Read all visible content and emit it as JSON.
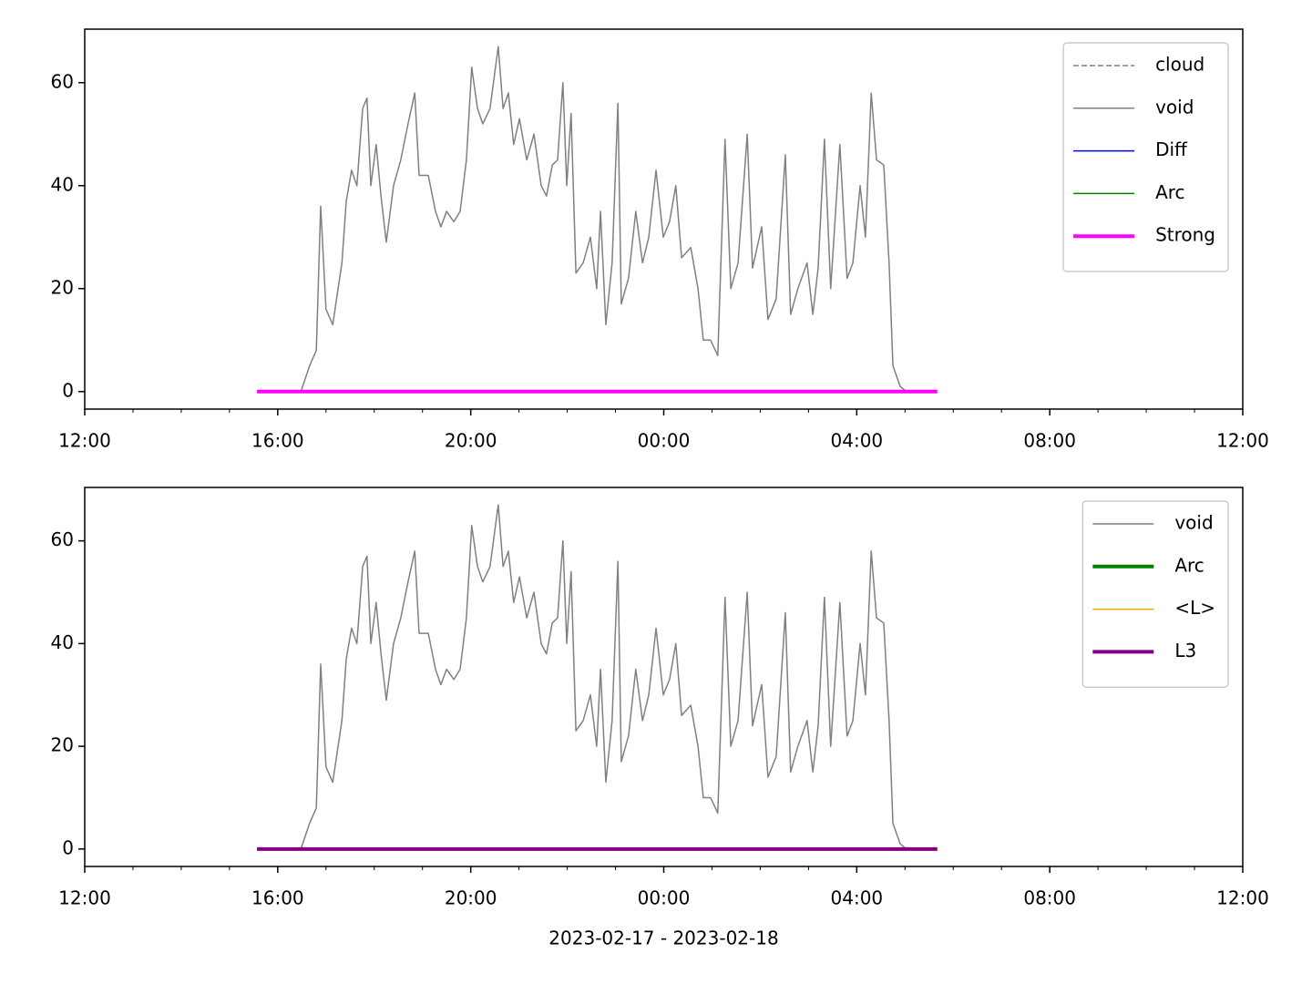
{
  "chart_data": [
    {
      "type": "line",
      "legend": "upper right",
      "xlim": [
        12,
        36
      ],
      "ylim": [
        -3.4,
        70.4
      ],
      "xticks": [
        {
          "value": 12,
          "label": "12:00"
        },
        {
          "value": 16,
          "label": "16:00"
        },
        {
          "value": 20,
          "label": "20:00"
        },
        {
          "value": 24,
          "label": "00:00"
        },
        {
          "value": 28,
          "label": "04:00"
        },
        {
          "value": 32,
          "label": "08:00"
        },
        {
          "value": 36,
          "label": "12:00"
        }
      ],
      "xticks_minor": [
        13,
        14,
        15,
        17,
        18,
        19,
        21,
        22,
        23,
        25,
        26,
        27,
        29,
        30,
        31,
        33,
        34,
        35
      ],
      "yticks": [
        0,
        20,
        40,
        60
      ],
      "series": [
        {
          "name": "cloud",
          "color": "#808080",
          "linestyle": "dashed",
          "linewidth": 1.5,
          "x": [],
          "values": []
        },
        {
          "name": "void",
          "color": "#808080",
          "linestyle": "solid",
          "linewidth": 1.5,
          "x": [
            16.48,
            16.66,
            16.8,
            16.89,
            17.0,
            17.14,
            17.33,
            17.42,
            17.53,
            17.64,
            17.76,
            17.85,
            17.93,
            18.04,
            18.14,
            18.25,
            18.4,
            18.55,
            18.7,
            18.84,
            18.93,
            19.12,
            19.27,
            19.38,
            19.5,
            19.65,
            19.78,
            19.91,
            20.02,
            20.14,
            20.25,
            20.4,
            20.57,
            20.67,
            20.78,
            20.89,
            21.01,
            21.16,
            21.31,
            21.46,
            21.57,
            21.69,
            21.8,
            21.91,
            21.99,
            22.08,
            22.18,
            22.33,
            22.48,
            22.61,
            22.69,
            22.8,
            22.93,
            23.05,
            23.12,
            23.27,
            23.42,
            23.56,
            23.69,
            23.84,
            23.99,
            24.12,
            24.25,
            24.37,
            24.56,
            24.71,
            24.82,
            24.97,
            25.12,
            25.27,
            25.39,
            25.54,
            25.73,
            25.84,
            26.03,
            26.16,
            26.33,
            26.52,
            26.63,
            26.78,
            26.97,
            27.09,
            27.2,
            27.33,
            27.46,
            27.65,
            27.8,
            27.92,
            28.07,
            28.18,
            28.3,
            28.41,
            28.56,
            28.67,
            28.75,
            28.9,
            29.03
          ],
          "values": [
            0,
            5,
            8,
            36,
            16,
            13,
            25,
            37,
            43,
            40,
            55,
            57,
            40,
            48,
            38,
            29,
            40,
            45,
            52,
            58,
            42,
            42,
            35,
            32,
            35,
            33,
            35,
            45,
            63,
            55,
            52,
            55,
            67,
            55,
            58,
            48,
            53,
            45,
            50,
            40,
            38,
            44,
            45,
            60,
            40,
            54,
            23,
            25,
            30,
            20,
            35,
            13,
            25,
            56,
            17,
            22,
            35,
            25,
            30,
            43,
            30,
            33,
            40,
            26,
            28,
            20,
            10,
            10,
            7,
            49,
            20,
            25,
            50,
            24,
            32,
            14,
            18,
            46,
            15,
            20,
            25,
            15,
            24,
            49,
            20,
            48,
            22,
            25,
            40,
            30,
            58,
            45,
            44,
            25,
            5,
            1,
            0
          ]
        },
        {
          "name": "Diff",
          "color": "#0000ff",
          "linestyle": "solid",
          "linewidth": 1.5,
          "x": [],
          "values": []
        },
        {
          "name": "Arc",
          "color": "#008000",
          "linestyle": "solid",
          "linewidth": 1.5,
          "x": [],
          "values": []
        },
        {
          "name": "Strong",
          "color": "#ff00ff",
          "linestyle": "solid",
          "linewidth": 4,
          "x": [
            15.57,
            29.67
          ],
          "values": [
            0,
            0
          ]
        }
      ]
    },
    {
      "type": "line",
      "legend": "upper right",
      "xlim": [
        12,
        36
      ],
      "ylim": [
        -3.4,
        70.4
      ],
      "xticks": [
        {
          "value": 12,
          "label": "12:00"
        },
        {
          "value": 16,
          "label": "16:00"
        },
        {
          "value": 20,
          "label": "20:00"
        },
        {
          "value": 24,
          "label": "00:00"
        },
        {
          "value": 28,
          "label": "04:00"
        },
        {
          "value": 32,
          "label": "08:00"
        },
        {
          "value": 36,
          "label": "12:00"
        }
      ],
      "xticks_minor": [
        13,
        14,
        15,
        17,
        18,
        19,
        21,
        22,
        23,
        25,
        26,
        27,
        29,
        30,
        31,
        33,
        34,
        35
      ],
      "yticks": [
        0,
        20,
        40,
        60
      ],
      "xlabel": "2023-02-17 - 2023-02-18",
      "series": [
        {
          "name": "void",
          "color": "#808080",
          "linestyle": "solid",
          "linewidth": 1.5,
          "x": [
            16.48,
            16.66,
            16.8,
            16.89,
            17.0,
            17.14,
            17.33,
            17.42,
            17.53,
            17.64,
            17.76,
            17.85,
            17.93,
            18.04,
            18.14,
            18.25,
            18.4,
            18.55,
            18.7,
            18.84,
            18.93,
            19.12,
            19.27,
            19.38,
            19.5,
            19.65,
            19.78,
            19.91,
            20.02,
            20.14,
            20.25,
            20.4,
            20.57,
            20.67,
            20.78,
            20.89,
            21.01,
            21.16,
            21.31,
            21.46,
            21.57,
            21.69,
            21.8,
            21.91,
            21.99,
            22.08,
            22.18,
            22.33,
            22.48,
            22.61,
            22.69,
            22.8,
            22.93,
            23.05,
            23.12,
            23.27,
            23.42,
            23.56,
            23.69,
            23.84,
            23.99,
            24.12,
            24.25,
            24.37,
            24.56,
            24.71,
            24.82,
            24.97,
            25.12,
            25.27,
            25.39,
            25.54,
            25.73,
            25.84,
            26.03,
            26.16,
            26.33,
            26.52,
            26.63,
            26.78,
            26.97,
            27.09,
            27.2,
            27.33,
            27.46,
            27.65,
            27.8,
            27.92,
            28.07,
            28.18,
            28.3,
            28.41,
            28.56,
            28.67,
            28.75,
            28.9,
            29.03
          ],
          "values": [
            0,
            5,
            8,
            36,
            16,
            13,
            25,
            37,
            43,
            40,
            55,
            57,
            40,
            48,
            38,
            29,
            40,
            45,
            52,
            58,
            42,
            42,
            35,
            32,
            35,
            33,
            35,
            45,
            63,
            55,
            52,
            55,
            67,
            55,
            58,
            48,
            53,
            45,
            50,
            40,
            38,
            44,
            45,
            60,
            40,
            54,
            23,
            25,
            30,
            20,
            35,
            13,
            25,
            56,
            17,
            22,
            35,
            25,
            30,
            43,
            30,
            33,
            40,
            26,
            28,
            20,
            10,
            10,
            7,
            49,
            20,
            25,
            50,
            24,
            32,
            14,
            18,
            46,
            15,
            20,
            25,
            15,
            24,
            49,
            20,
            48,
            22,
            25,
            40,
            30,
            58,
            45,
            44,
            25,
            5,
            1,
            0
          ]
        },
        {
          "name": "Arc",
          "color": "#008000",
          "linestyle": "solid",
          "linewidth": 4,
          "x": [],
          "values": []
        },
        {
          "name": "<L>",
          "color": "#ffa500",
          "linestyle": "solid",
          "linewidth": 1.5,
          "x": [],
          "values": []
        },
        {
          "name": "L3",
          "color": "#800080",
          "linestyle": "solid",
          "linewidth": 4,
          "x": [
            15.57,
            29.67
          ],
          "values": [
            0,
            0
          ]
        }
      ]
    }
  ]
}
